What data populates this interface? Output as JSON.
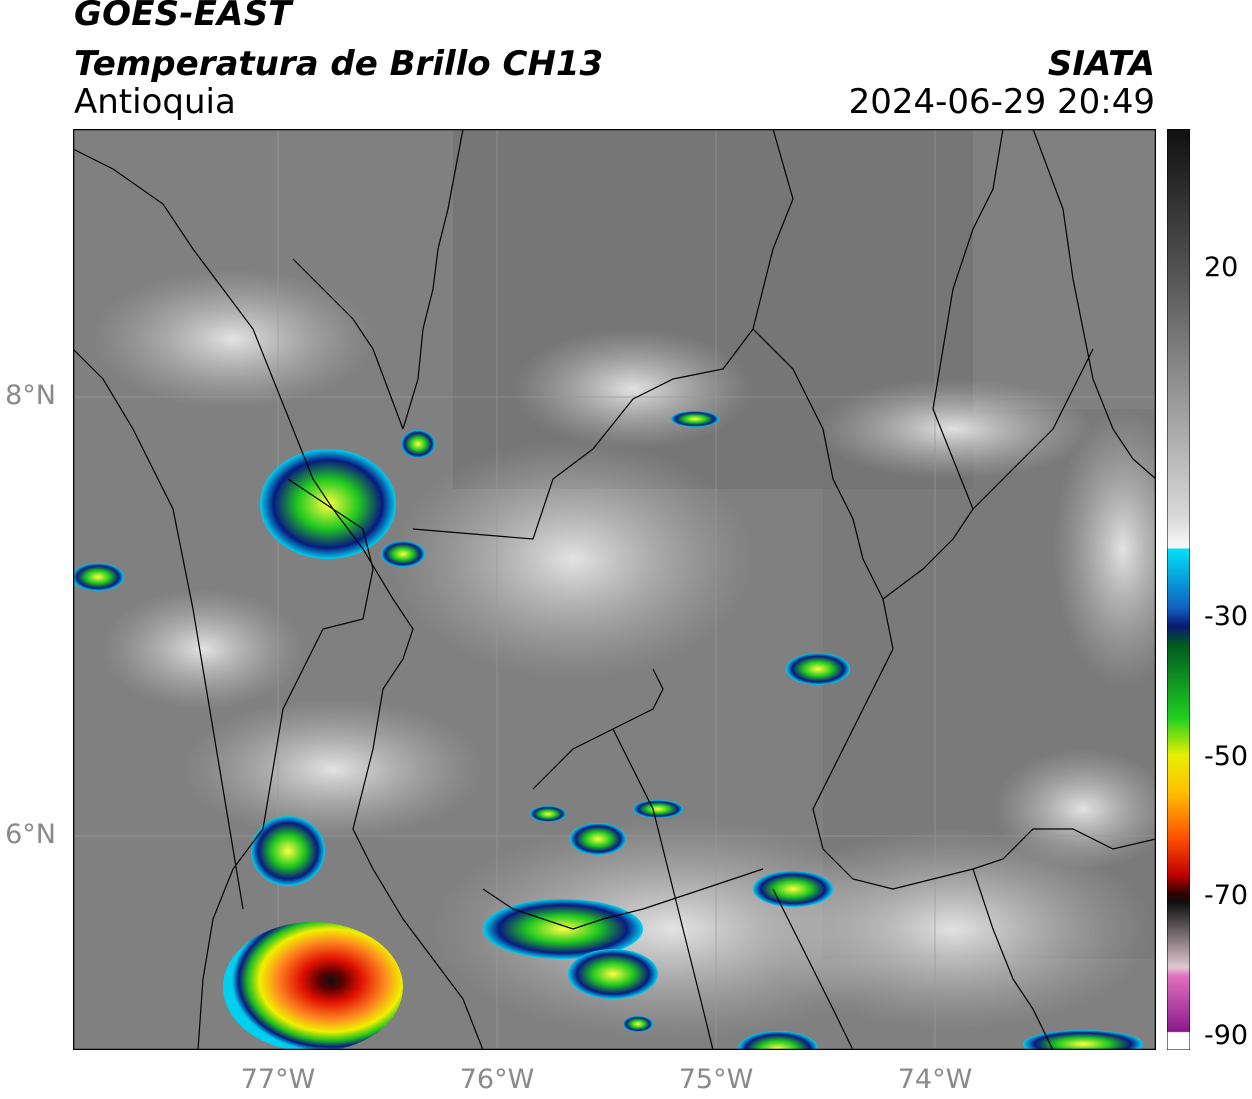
{
  "header": {
    "satellite": "GOES-EAST",
    "product": "Temperatura de Brillo CH13",
    "region": "Antioquia",
    "organization": "SIATA",
    "datetime": "2024-06-29 20:49"
  },
  "map": {
    "lat_labels": [
      "8°N",
      "6°N"
    ],
    "lon_labels": [
      "77°W",
      "76°W",
      "75°W",
      "74°W"
    ],
    "lat_values": [
      8,
      6
    ],
    "lon_values": [
      -77,
      -76,
      -75,
      -74
    ]
  },
  "colorbar": {
    "tick_labels": [
      "20",
      "-30",
      "-50",
      "-70",
      "-90"
    ],
    "tick_values": [
      20,
      -30,
      -50,
      -70,
      -90
    ],
    "colors": {
      "warm_gray_top": "#101010",
      "mid_gray": "#7a7a7a",
      "white": "#f5f5f5",
      "cyan": "#00d8f0",
      "blue": "#0a2a8a",
      "green": "#10c020",
      "yellow": "#f0f000",
      "orange": "#ff8000",
      "red": "#e00000",
      "dark_red": "#400000",
      "magenta": "#c040c0",
      "purple": "#8a1a8a"
    }
  }
}
